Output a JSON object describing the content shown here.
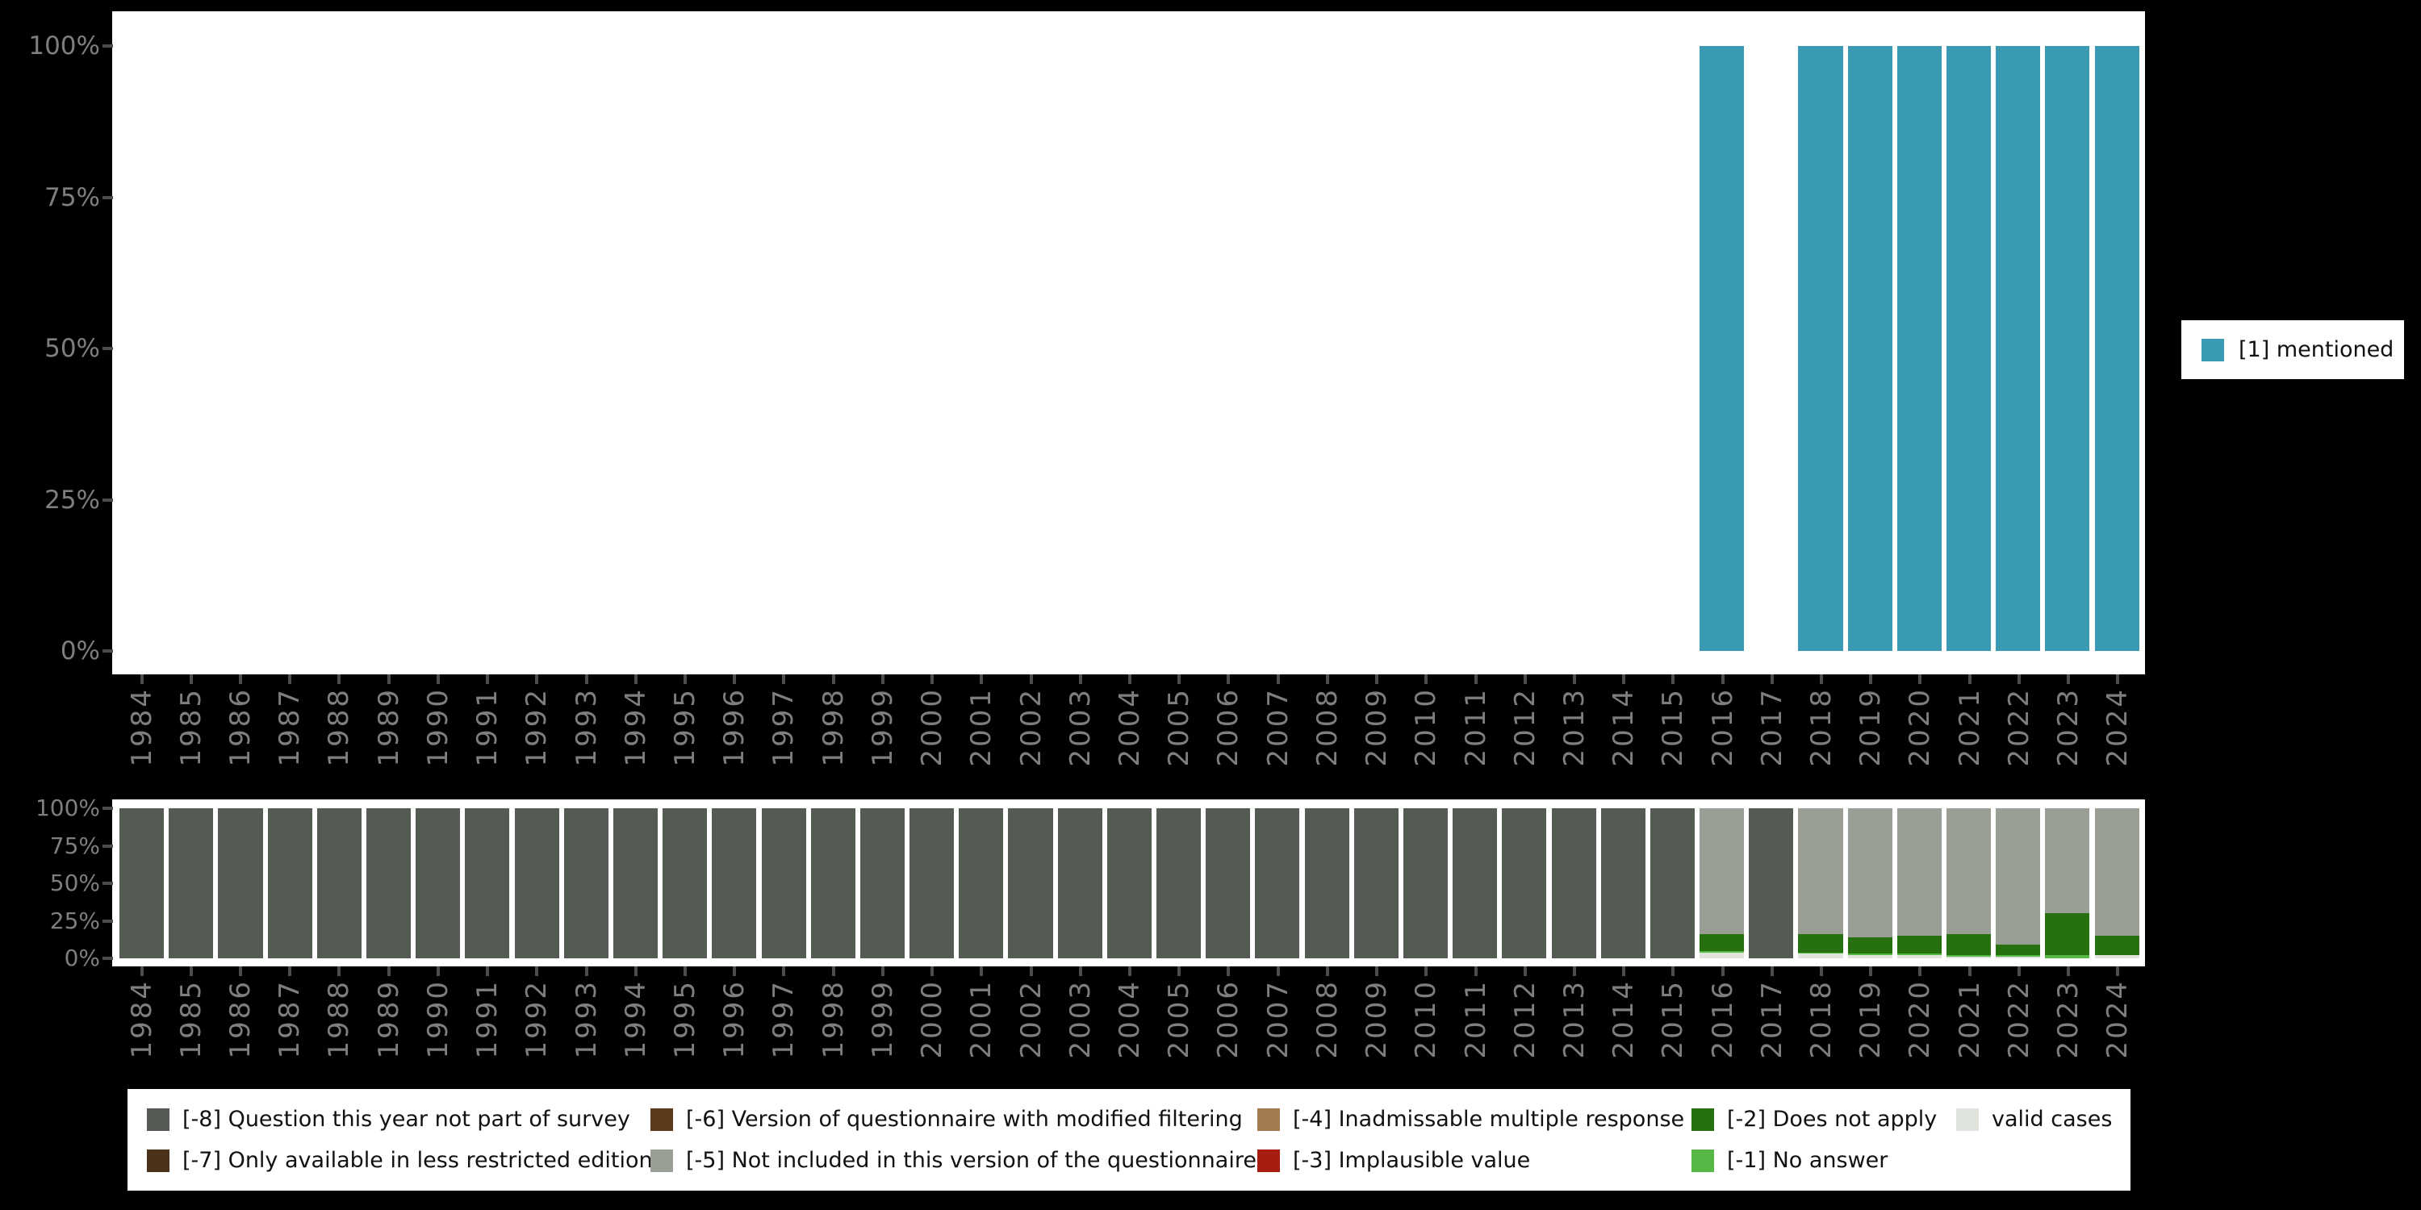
{
  "page": {
    "background": "#000000",
    "plot_background": "#ffffff"
  },
  "colors": {
    "mentioned": "#3a9ab2",
    "minus8": "#545b52",
    "minus7": "#49311a",
    "minus6": "#5a3a1b",
    "minus5": "#9a9f96",
    "minus4": "#a27c50",
    "minus3": "#a81c12",
    "minus2": "#26700f",
    "minus1": "#55b845",
    "valid": "#dfe4dc",
    "axis_label": "#7e7e7e",
    "tick": "#4d4d4d"
  },
  "top_legend": {
    "label": "[1] mentioned",
    "color": "#3a9ab2"
  },
  "legend_bottom": {
    "items": [
      {
        "label": "[-8] Question this year not part of survey",
        "color": "#545b52"
      },
      {
        "label": "[-6] Version of questionnaire with modified filtering",
        "color": "#5a3a1b"
      },
      {
        "label": "[-4] Inadmissable multiple response",
        "color": "#a27c50"
      },
      {
        "label": "[-2] Does not apply",
        "color": "#26700f"
      },
      {
        "label": "valid cases",
        "color": "#dfe4dc"
      },
      {
        "label": "[-7] Only available in less restricted edition",
        "color": "#49311a"
      },
      {
        "label": "[-5] Not included in this version of the questionnaire",
        "color": "#9a9f96"
      },
      {
        "label": "[-3] Implausible value",
        "color": "#a81c12"
      },
      {
        "label": "[-1] No answer",
        "color": "#55b845"
      }
    ]
  },
  "chart_data": [
    {
      "type": "bar",
      "title": "",
      "xlabel": "",
      "ylabel": "",
      "ylim": [
        0,
        100
      ],
      "yticks": [
        "100%",
        "75%",
        "50%",
        "25%",
        "0%"
      ],
      "grid": false,
      "legend_position": "right",
      "x": [
        1984,
        1985,
        1986,
        1987,
        1988,
        1989,
        1990,
        1991,
        1992,
        1993,
        1994,
        1995,
        1996,
        1997,
        1998,
        1999,
        2000,
        2001,
        2002,
        2003,
        2004,
        2005,
        2006,
        2007,
        2008,
        2009,
        2010,
        2011,
        2012,
        2013,
        2014,
        2015,
        2016,
        2017,
        2018,
        2019,
        2020,
        2021,
        2022,
        2023,
        2024
      ],
      "series": [
        {
          "name": "[1] mentioned",
          "color": "#3a9ab2",
          "values": [
            0,
            0,
            0,
            0,
            0,
            0,
            0,
            0,
            0,
            0,
            0,
            0,
            0,
            0,
            0,
            0,
            0,
            0,
            0,
            0,
            0,
            0,
            0,
            0,
            0,
            0,
            0,
            0,
            0,
            0,
            0,
            0,
            100,
            0,
            100,
            100,
            100,
            100,
            100,
            100,
            100
          ]
        }
      ]
    },
    {
      "type": "bar",
      "stacked": true,
      "title": "",
      "xlabel": "",
      "ylabel": "",
      "ylim": [
        0,
        100
      ],
      "yticks": [
        "100%",
        "75%",
        "50%",
        "25%",
        "0%"
      ],
      "grid": false,
      "legend_position": "bottom",
      "x": [
        1984,
        1985,
        1986,
        1987,
        1988,
        1989,
        1990,
        1991,
        1992,
        1993,
        1994,
        1995,
        1996,
        1997,
        1998,
        1999,
        2000,
        2001,
        2002,
        2003,
        2004,
        2005,
        2006,
        2007,
        2008,
        2009,
        2010,
        2011,
        2012,
        2013,
        2014,
        2015,
        2016,
        2017,
        2018,
        2019,
        2020,
        2021,
        2022,
        2023,
        2024
      ],
      "series": [
        {
          "name": "valid cases",
          "color": "#dfe4dc",
          "values": [
            0,
            0,
            0,
            0,
            0,
            0,
            0,
            0,
            0,
            0,
            0,
            0,
            0,
            0,
            0,
            0,
            0,
            0,
            0,
            0,
            0,
            0,
            0,
            0,
            0,
            0,
            0,
            0,
            0,
            0,
            0,
            0,
            4,
            0,
            3,
            2,
            2,
            1,
            1,
            0,
            2
          ]
        },
        {
          "name": "[-1] No answer",
          "color": "#55b845",
          "values": [
            0,
            0,
            0,
            0,
            0,
            0,
            0,
            0,
            0,
            0,
            0,
            0,
            0,
            0,
            0,
            0,
            0,
            0,
            0,
            0,
            0,
            0,
            0,
            0,
            0,
            0,
            0,
            0,
            0,
            0,
            0,
            0,
            1,
            0,
            1,
            1,
            1,
            1,
            1,
            2,
            0
          ]
        },
        {
          "name": "[-2] Does not apply",
          "color": "#26700f",
          "values": [
            0,
            0,
            0,
            0,
            0,
            0,
            0,
            0,
            0,
            0,
            0,
            0,
            0,
            0,
            0,
            0,
            0,
            0,
            0,
            0,
            0,
            0,
            0,
            0,
            0,
            0,
            0,
            0,
            0,
            0,
            0,
            0,
            11,
            0,
            12,
            11,
            12,
            14,
            7,
            28,
            13
          ]
        },
        {
          "name": "[-3] Implausible value",
          "color": "#a81c12",
          "values": [
            0,
            0,
            0,
            0,
            0,
            0,
            0,
            0,
            0,
            0,
            0,
            0,
            0,
            0,
            0,
            0,
            0,
            0,
            0,
            0,
            0,
            0,
            0,
            0,
            0,
            0,
            0,
            0,
            0,
            0,
            0,
            0,
            0,
            0,
            0,
            0,
            0,
            0,
            0,
            0,
            0
          ]
        },
        {
          "name": "[-4] Inadmissable multiple response",
          "color": "#a27c50",
          "values": [
            0,
            0,
            0,
            0,
            0,
            0,
            0,
            0,
            0,
            0,
            0,
            0,
            0,
            0,
            0,
            0,
            0,
            0,
            0,
            0,
            0,
            0,
            0,
            0,
            0,
            0,
            0,
            0,
            0,
            0,
            0,
            0,
            0,
            0,
            0,
            0,
            0,
            0,
            0,
            0,
            0
          ]
        },
        {
          "name": "[-5] Not included in this version of the questionnaire",
          "color": "#9a9f96",
          "values": [
            0,
            0,
            0,
            0,
            0,
            0,
            0,
            0,
            0,
            0,
            0,
            0,
            0,
            0,
            0,
            0,
            0,
            0,
            0,
            0,
            0,
            0,
            0,
            0,
            0,
            0,
            0,
            0,
            0,
            0,
            0,
            0,
            84,
            0,
            84,
            86,
            85,
            84,
            91,
            70,
            85
          ]
        },
        {
          "name": "[-6] Version of questionnaire with modified filtering",
          "color": "#5a3a1b",
          "values": [
            0,
            0,
            0,
            0,
            0,
            0,
            0,
            0,
            0,
            0,
            0,
            0,
            0,
            0,
            0,
            0,
            0,
            0,
            0,
            0,
            0,
            0,
            0,
            0,
            0,
            0,
            0,
            0,
            0,
            0,
            0,
            0,
            0,
            0,
            0,
            0,
            0,
            0,
            0,
            0,
            0
          ]
        },
        {
          "name": "[-7] Only available in less restricted edition",
          "color": "#49311a",
          "values": [
            0,
            0,
            0,
            0,
            0,
            0,
            0,
            0,
            0,
            0,
            0,
            0,
            0,
            0,
            0,
            0,
            0,
            0,
            0,
            0,
            0,
            0,
            0,
            0,
            0,
            0,
            0,
            0,
            0,
            0,
            0,
            0,
            0,
            0,
            0,
            0,
            0,
            0,
            0,
            0,
            0
          ]
        },
        {
          "name": "[-8] Question this year not part of survey",
          "color": "#545b52",
          "values": [
            100,
            100,
            100,
            100,
            100,
            100,
            100,
            100,
            100,
            100,
            100,
            100,
            100,
            100,
            100,
            100,
            100,
            100,
            100,
            100,
            100,
            100,
            100,
            100,
            100,
            100,
            100,
            100,
            100,
            100,
            100,
            100,
            0,
            100,
            0,
            0,
            0,
            0,
            0,
            0,
            0
          ]
        }
      ]
    }
  ]
}
